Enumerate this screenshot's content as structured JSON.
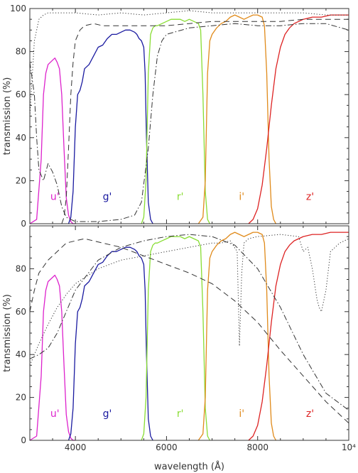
{
  "chart_data": [
    {
      "type": "line",
      "panel": "top",
      "ylabel": "transmission (%)",
      "xlabel": "",
      "xlim": [
        3000,
        10000
      ],
      "ylim": [
        0,
        100
      ],
      "xticks": [
        4000,
        6000,
        8000,
        10000
      ],
      "xtick_labels": [
        "",
        "",
        "",
        ""
      ],
      "yticks": [
        0,
        20,
        40,
        60,
        80,
        100
      ],
      "ytick_labels": [
        "0",
        "20",
        "40",
        "60",
        "80",
        "100"
      ],
      "grid": false,
      "band_labels": [
        {
          "text": "u'",
          "x": 3550,
          "y": 11,
          "color": "#dd22cc"
        },
        {
          "text": "g'",
          "x": 4700,
          "y": 11,
          "color": "#1a1aa0"
        },
        {
          "text": "r'",
          "x": 6300,
          "y": 11,
          "color": "#88dd33"
        },
        {
          "text": "i'",
          "x": 7650,
          "y": 11,
          "color": "#e08a1a"
        },
        {
          "text": "z'",
          "x": 9150,
          "y": 11,
          "color": "#dd2222"
        }
      ],
      "series": [
        {
          "color": "#dd22cc",
          "style": "solid",
          "x": [
            3000,
            3150,
            3250,
            3300,
            3350,
            3400,
            3500,
            3550,
            3600,
            3650,
            3700,
            3750,
            3800,
            3850,
            3900,
            3950,
            4000
          ],
          "y": [
            0,
            2,
            30,
            60,
            70,
            74,
            76,
            77,
            75,
            72,
            60,
            35,
            12,
            4,
            1,
            0,
            0
          ]
        },
        {
          "color": "#1a1aa0",
          "style": "solid",
          "x": [
            3850,
            3900,
            3950,
            4000,
            4050,
            4100,
            4150,
            4200,
            4300,
            4400,
            4500,
            4600,
            4700,
            4800,
            4900,
            5000,
            5100,
            5200,
            5300,
            5350,
            5400,
            5450,
            5500,
            5530,
            5560,
            5600,
            5650,
            5700
          ],
          "y": [
            0,
            3,
            15,
            45,
            60,
            62,
            66,
            72,
            74,
            78,
            82,
            83,
            86,
            88,
            88,
            89,
            90,
            90,
            89,
            88,
            86,
            85,
            82,
            70,
            40,
            10,
            2,
            0
          ]
        },
        {
          "color": "#88dd33",
          "style": "solid",
          "x": [
            5450,
            5500,
            5550,
            5600,
            5650,
            5700,
            5750,
            5800,
            5900,
            6000,
            6100,
            6200,
            6300,
            6400,
            6500,
            6600,
            6700,
            6750,
            6800,
            6850,
            6900,
            6950
          ],
          "y": [
            0,
            3,
            20,
            70,
            88,
            91,
            92,
            92,
            93,
            94,
            95,
            95,
            95,
            94,
            95,
            94,
            93,
            90,
            60,
            15,
            2,
            0
          ]
        },
        {
          "color": "#e08a1a",
          "style": "solid",
          "x": [
            6700,
            6800,
            6850,
            6900,
            6950,
            7000,
            7100,
            7200,
            7300,
            7400,
            7500,
            7600,
            7700,
            7800,
            7900,
            8000,
            8100,
            8150,
            8200,
            8250,
            8300,
            8350,
            8400
          ],
          "y": [
            0,
            3,
            20,
            70,
            85,
            88,
            91,
            93,
            94,
            96,
            97,
            96,
            95,
            96,
            97,
            97,
            96,
            92,
            70,
            30,
            8,
            2,
            0
          ]
        },
        {
          "color": "#dd2222",
          "style": "solid",
          "x": [
            7800,
            7900,
            8000,
            8100,
            8200,
            8300,
            8400,
            8500,
            8600,
            8700,
            8800,
            9000,
            9200,
            9400,
            9600,
            9800,
            10000
          ],
          "y": [
            0,
            2,
            7,
            18,
            35,
            55,
            72,
            82,
            88,
            91,
            93,
            95,
            96,
            96,
            97,
            97,
            97
          ]
        },
        {
          "color": "#333333",
          "style": "dotted",
          "x": [
            3000,
            3100,
            3200,
            3300,
            3400,
            3500,
            3700,
            4000,
            4500,
            5000,
            5500,
            6000,
            6500,
            7000,
            7500,
            8000,
            8500,
            9000,
            9500,
            10000
          ],
          "y": [
            50,
            85,
            95,
            97,
            98,
            98,
            98,
            98,
            97,
            98,
            97,
            98,
            99,
            98,
            98,
            98,
            98,
            98,
            97,
            97
          ]
        },
        {
          "color": "#333333",
          "style": "dashed",
          "x": [
            3700,
            3750,
            3800,
            3850,
            3900,
            3950,
            4000,
            4100,
            4200,
            4400,
            4600,
            5000,
            5500,
            6000,
            6500,
            7000,
            7500,
            8000,
            8500,
            9000,
            9500,
            10000
          ],
          "y": [
            0,
            3,
            12,
            35,
            60,
            75,
            85,
            90,
            92,
            93,
            92,
            92,
            92,
            92,
            93,
            94,
            94,
            94,
            94,
            95,
            95,
            95
          ]
        },
        {
          "color": "#333333",
          "style": "dashdot",
          "x": [
            3000,
            3100,
            3150,
            3200,
            3300,
            3400,
            3500,
            3600,
            3700,
            3800,
            4000,
            4500,
            5000,
            5300,
            5450,
            5600,
            5700,
            5800,
            5900,
            6000,
            6500,
            7000,
            7500,
            8000,
            8500,
            9000,
            9500,
            10000
          ],
          "y": [
            75,
            60,
            40,
            25,
            20,
            28,
            24,
            18,
            8,
            3,
            1,
            1,
            2,
            4,
            10,
            35,
            60,
            78,
            85,
            88,
            91,
            92,
            93,
            92,
            92,
            93,
            93,
            90
          ]
        }
      ]
    },
    {
      "type": "line",
      "panel": "bottom",
      "ylabel": "transmission (%)",
      "xlabel": "wavelength (Å)",
      "xlim": [
        3000,
        10000
      ],
      "ylim": [
        0,
        100
      ],
      "xticks": [
        4000,
        6000,
        8000,
        10000
      ],
      "xtick_labels": [
        "4000",
        "6000",
        "8000",
        "10⁴"
      ],
      "yticks": [
        0,
        20,
        40,
        60,
        80,
        100
      ],
      "ytick_labels": [
        "0",
        "20",
        "40",
        "60",
        "80",
        ""
      ],
      "grid": false,
      "band_labels": [
        {
          "text": "u'",
          "x": 3550,
          "y": 11,
          "color": "#dd22cc"
        },
        {
          "text": "g'",
          "x": 4700,
          "y": 11,
          "color": "#1a1aa0"
        },
        {
          "text": "r'",
          "x": 6300,
          "y": 11,
          "color": "#88dd33"
        },
        {
          "text": "i'",
          "x": 7650,
          "y": 11,
          "color": "#e08a1a"
        },
        {
          "text": "z'",
          "x": 9150,
          "y": 11,
          "color": "#dd2222"
        }
      ],
      "series": [
        {
          "color": "#dd22cc",
          "style": "solid",
          "x": [
            3000,
            3150,
            3250,
            3300,
            3350,
            3400,
            3500,
            3550,
            3600,
            3650,
            3700,
            3750,
            3800,
            3850,
            3900,
            3950,
            4000
          ],
          "y": [
            0,
            2,
            30,
            60,
            70,
            74,
            76,
            77,
            75,
            72,
            60,
            35,
            12,
            4,
            1,
            0,
            0
          ]
        },
        {
          "color": "#1a1aa0",
          "style": "solid",
          "x": [
            3850,
            3900,
            3950,
            4000,
            4050,
            4100,
            4150,
            4200,
            4300,
            4400,
            4500,
            4600,
            4700,
            4800,
            4900,
            5000,
            5100,
            5200,
            5300,
            5350,
            5400,
            5450,
            5500,
            5530,
            5560,
            5600,
            5650,
            5700
          ],
          "y": [
            0,
            3,
            15,
            45,
            60,
            62,
            66,
            72,
            74,
            78,
            82,
            83,
            86,
            88,
            88,
            89,
            90,
            90,
            89,
            88,
            86,
            85,
            82,
            70,
            40,
            10,
            2,
            0
          ]
        },
        {
          "color": "#88dd33",
          "style": "solid",
          "x": [
            5450,
            5500,
            5550,
            5600,
            5650,
            5700,
            5750,
            5800,
            5900,
            6000,
            6100,
            6200,
            6300,
            6400,
            6500,
            6600,
            6700,
            6750,
            6800,
            6850,
            6900,
            6950
          ],
          "y": [
            0,
            3,
            20,
            70,
            88,
            91,
            92,
            92,
            93,
            94,
            95,
            95,
            95,
            94,
            95,
            94,
            93,
            90,
            60,
            15,
            2,
            0
          ]
        },
        {
          "color": "#e08a1a",
          "style": "solid",
          "x": [
            6700,
            6800,
            6850,
            6900,
            6950,
            7000,
            7100,
            7200,
            7300,
            7400,
            7500,
            7600,
            7700,
            7800,
            7900,
            8000,
            8100,
            8150,
            8200,
            8250,
            8300,
            8350,
            8400
          ],
          "y": [
            0,
            3,
            20,
            70,
            85,
            88,
            91,
            93,
            94,
            96,
            97,
            96,
            95,
            96,
            97,
            97,
            96,
            92,
            70,
            30,
            8,
            2,
            0
          ]
        },
        {
          "color": "#dd2222",
          "style": "solid",
          "x": [
            7800,
            7900,
            8000,
            8100,
            8200,
            8300,
            8400,
            8500,
            8600,
            8700,
            8800,
            9000,
            9200,
            9400,
            9600,
            9800,
            10000
          ],
          "y": [
            0,
            2,
            7,
            18,
            35,
            55,
            72,
            82,
            88,
            91,
            93,
            95,
            96,
            96,
            97,
            97,
            97
          ]
        },
        {
          "color": "#333333",
          "style": "dotted",
          "x": [
            3000,
            3200,
            3400,
            3600,
            3800,
            4000,
            4500,
            5000,
            5500,
            6000,
            6500,
            7000,
            7200,
            7400,
            7550,
            7600,
            7650,
            7700,
            7800,
            8000,
            8500,
            8900,
            9000,
            9100,
            9200,
            9300,
            9350,
            9400,
            9500,
            9600,
            9800,
            10000
          ],
          "y": [
            35,
            45,
            54,
            62,
            68,
            73,
            80,
            84,
            86,
            88,
            90,
            92,
            92,
            93,
            88,
            44,
            78,
            92,
            94,
            95,
            96,
            95,
            88,
            90,
            80,
            66,
            62,
            60,
            70,
            88,
            92,
            94
          ]
        },
        {
          "color": "#333333",
          "style": "dashed",
          "x": [
            3000,
            3100,
            3200,
            3400,
            3600,
            3800,
            4000,
            4200,
            4400,
            4600,
            4800,
            5000,
            5500,
            6000,
            6500,
            7000,
            7500,
            8000,
            8500,
            9000,
            9500,
            10000
          ],
          "y": [
            60,
            70,
            78,
            84,
            88,
            92,
            93,
            94,
            93,
            92,
            91,
            90,
            86,
            82,
            78,
            73,
            65,
            55,
            42,
            30,
            18,
            8
          ]
        },
        {
          "color": "#333333",
          "style": "dashdot",
          "x": [
            3000,
            3200,
            3400,
            3600,
            3800,
            4000,
            4500,
            5000,
            5500,
            6000,
            6500,
            7000,
            7500,
            8000,
            8500,
            9000,
            9500,
            10000
          ],
          "y": [
            38,
            40,
            43,
            50,
            60,
            70,
            84,
            90,
            93,
            95,
            96,
            95,
            91,
            80,
            62,
            40,
            22,
            14
          ]
        }
      ]
    }
  ]
}
